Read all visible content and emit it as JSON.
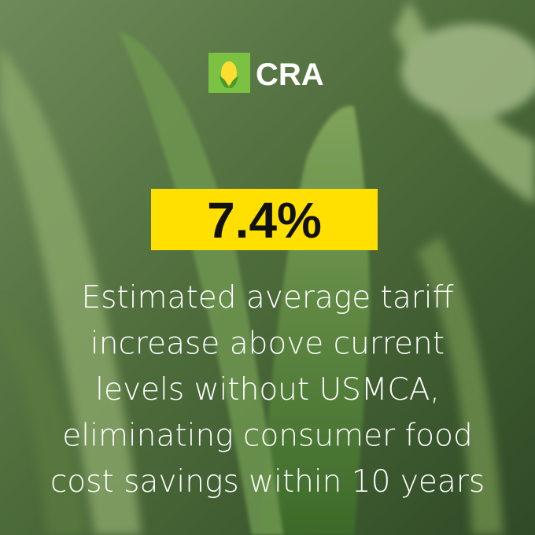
{
  "logo": {
    "text": "CRA"
  },
  "stat": {
    "value": "7.4%"
  },
  "description": {
    "lines": [
      "Estimated average tariff",
      "increase above current",
      "levels without USMCA,",
      "eliminating consumer food",
      "cost savings within 10 years"
    ]
  }
}
